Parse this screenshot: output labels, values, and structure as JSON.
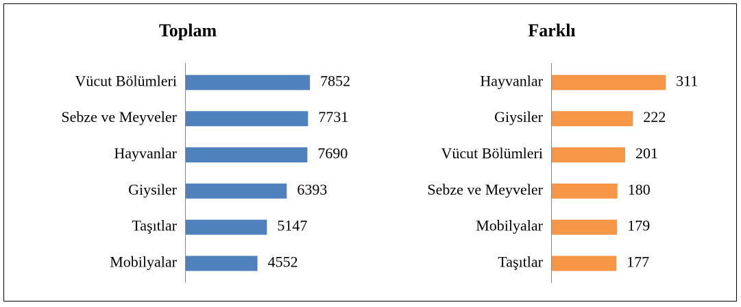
{
  "chart_data": [
    {
      "type": "bar",
      "orientation": "horizontal",
      "title": "Toplam",
      "categories": [
        "Vücut Bölümleri",
        "Sebze ve Meyveler",
        "Hayvanlar",
        "Giysiler",
        "Taşıtlar",
        "Mobilyalar"
      ],
      "values": [
        7852,
        7731,
        7690,
        6393,
        5147,
        4552
      ],
      "color": "#4f81bd",
      "xlim": [
        0,
        10000
      ]
    },
    {
      "type": "bar",
      "orientation": "horizontal",
      "title": "Farklı",
      "categories": [
        "Hayvanlar",
        "Giysiler",
        "Vücut Bölümleri",
        "Sebze ve Meyveler",
        "Mobilyalar",
        "Taşıtlar"
      ],
      "values": [
        311,
        222,
        201,
        180,
        179,
        177
      ],
      "color": "#f79646",
      "xlim": [
        0,
        400
      ]
    }
  ]
}
